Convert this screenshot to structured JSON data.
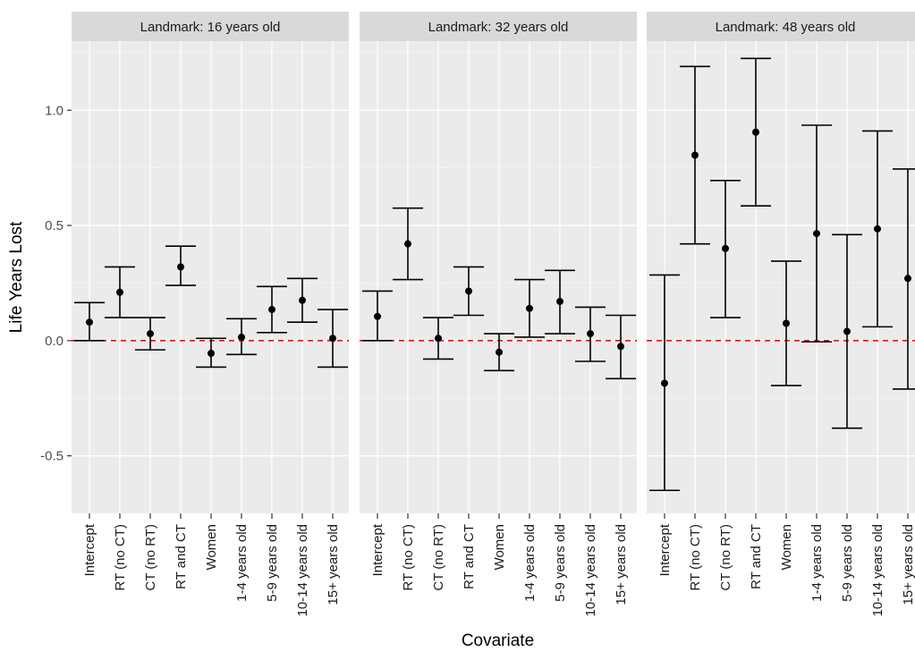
{
  "chart_data": {
    "type": "errorbar",
    "xlabel": "Covariate",
    "ylabel": "Life Years Lost",
    "ylim": [
      -0.75,
      1.3
    ],
    "yticks": [
      -0.5,
      0.0,
      0.5,
      1.0
    ],
    "ytick_labels": [
      "-0.5",
      "0.0",
      "0.5",
      "1.0"
    ],
    "reference_line": {
      "y": 0.0,
      "style": "dashed",
      "color": "#ff0000"
    },
    "grid": true,
    "categories": [
      "Intercept",
      "RT (no CT)",
      "CT (no RT)",
      "RT and CT",
      "Women",
      "1-4 years old",
      "5-9 years old",
      "10-14 years old",
      "15+ years old"
    ],
    "panels": [
      {
        "title": "Landmark: 16 years old",
        "estimates": [
          0.08,
          0.21,
          0.03,
          0.32,
          -0.055,
          0.015,
          0.135,
          0.175,
          0.01
        ],
        "lower": [
          0.0,
          0.1,
          -0.04,
          0.24,
          -0.115,
          -0.06,
          0.035,
          0.08,
          -0.115
        ],
        "upper": [
          0.165,
          0.32,
          0.1,
          0.41,
          0.01,
          0.095,
          0.235,
          0.27,
          0.135
        ]
      },
      {
        "title": "Landmark: 32 years old",
        "estimates": [
          0.105,
          0.42,
          0.01,
          0.215,
          -0.05,
          0.14,
          0.17,
          0.03,
          -0.025
        ],
        "lower": [
          0.0,
          0.265,
          -0.08,
          0.11,
          -0.13,
          0.015,
          0.03,
          -0.09,
          -0.165
        ],
        "upper": [
          0.215,
          0.575,
          0.1,
          0.32,
          0.03,
          0.265,
          0.305,
          0.145,
          0.11
        ]
      },
      {
        "title": "Landmark: 48 years old",
        "estimates": [
          -0.185,
          0.805,
          0.4,
          0.905,
          0.075,
          0.465,
          0.04,
          0.485,
          0.27
        ],
        "lower": [
          -0.65,
          0.42,
          0.1,
          0.585,
          -0.195,
          -0.005,
          -0.38,
          0.06,
          -0.21
        ],
        "upper": [
          0.285,
          1.19,
          0.695,
          1.225,
          0.345,
          0.935,
          0.46,
          0.91,
          0.745
        ]
      }
    ],
    "colors": {
      "panel_bg": "#ebebeb",
      "strip_bg": "#d9d9d9",
      "grid_major": "#ffffff",
      "marks": "#000000",
      "reference": "#ff0000"
    }
  }
}
